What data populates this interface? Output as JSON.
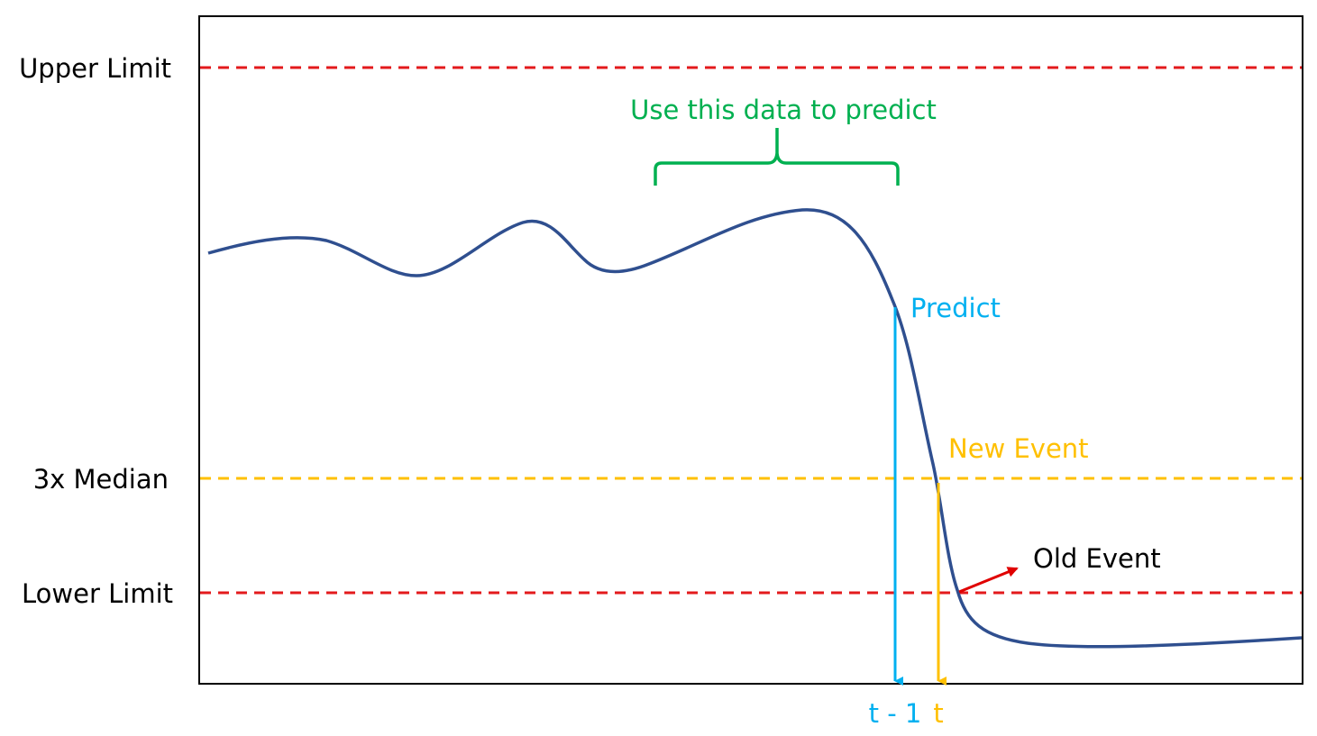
{
  "labels": {
    "upper_limit": "Upper Limit",
    "median": "3x Median",
    "lower_limit": "Lower Limit",
    "window": "Use this data to predict",
    "predict": "Predict",
    "new_event": "New Event",
    "old_event": "Old Event",
    "t_minus_1": "t - 1",
    "t": "t"
  },
  "colors": {
    "frame": "#000000",
    "limit_line": "#e31a1c",
    "median_line": "#ffc000",
    "signal_curve": "#2f4f8f",
    "window_brace": "#00b050",
    "predict_marker": "#00b0f0",
    "new_event_marker": "#ffc000",
    "old_event_arrow": "#e00000"
  }
}
